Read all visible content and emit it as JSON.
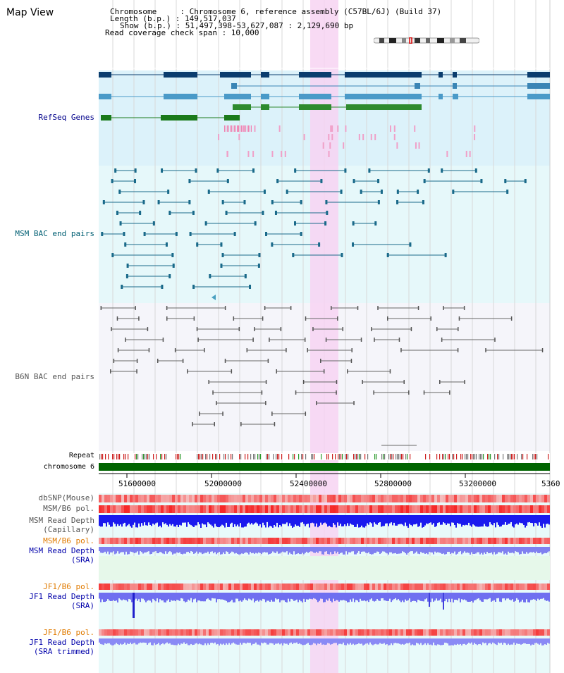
{
  "title": "Map View",
  "header": {
    "line1": "Chromosome     : Chromosome 6, reference assembly (C57BL/6J) (Build 37)",
    "line2": "Length (b.p.) : 149,517,037",
    "line3": "Show (b.p.) : 51,497,398-53,627,087 : 2,129,690 bp",
    "line4": "Read coverage check span : 10,000"
  },
  "tracks": {
    "refseq": "RefSeq Genes",
    "msm_bac": "MSM BAC end pairs",
    "b6n_bac": "B6N BAC end pairs",
    "repeat": "Repeat",
    "chromosome": "chromosome 6",
    "dbsnp": "dbSNP(Mouse)",
    "msm_b6_pol": "MSM/B6 pol.",
    "msm_depth_cap_1": "MSM Read Depth",
    "msm_depth_cap_2": "(Capillary)",
    "msm_b6_pol2": "MSM/B6 pol.",
    "msm_depth_sra_1": "MSM Read Depth",
    "msm_depth_sra_2": "(SRA)",
    "jf1_b6_pol": "JF1/B6 pol.",
    "jf1_depth_sra_1": "JF1 Read Depth",
    "jf1_depth_sra_2": "(SRA)",
    "jf1_b6_pol2": "JF1/B6 pol.",
    "jf1_depth_trim_1": "JF1 Read Depth",
    "jf1_depth_trim_2": "(SRA trimmed)"
  },
  "axis_ticks": [
    "51600000",
    "52000000",
    "52400000",
    "52800000",
    "53200000",
    "5360"
  ],
  "colors": {
    "refseq_label": "#00008b",
    "msm_label": "#005f73",
    "gray_label": "#555555",
    "orange_label": "#e07a00",
    "blue_label": "#0000aa",
    "highlight": "#f7d4f2",
    "chromosome_bar": "#006400"
  }
}
